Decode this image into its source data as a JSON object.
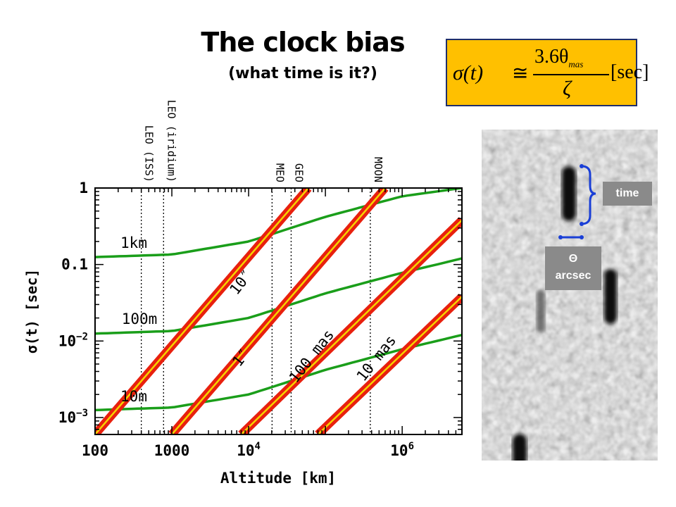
{
  "slide": {
    "title": "The clock bias",
    "subtitle": "(what time is it?)"
  },
  "formula": {
    "lhs": "σ(t)",
    "approx": "≅",
    "numerator": "3.6θ",
    "numerator_sub": "mas",
    "denominator": "ζ",
    "unit": "[sec]",
    "box_color": "#ffc000",
    "border_color": "#1f2f6b"
  },
  "image_panel": {
    "time_label": "time",
    "theta_label": "Θ",
    "arcsec_label": "arcsec",
    "bracket_color": "#1a3fd6"
  },
  "chart_data": {
    "type": "line",
    "xlabel": "Altitude [km]",
    "ylabel": "σ(t) [sec]",
    "xscale": "log",
    "yscale": "log",
    "xlim": [
      100,
      6000000
    ],
    "ylim": [
      0.0006,
      1
    ],
    "x_ticks": [
      {
        "value": 100,
        "label": "100",
        "sup": ""
      },
      {
        "value": 1000,
        "label": "1000",
        "sup": ""
      },
      {
        "value": 10000,
        "label": "10",
        "sup": "4"
      },
      {
        "value": 1000000,
        "label": "10",
        "sup": "6"
      }
    ],
    "y_ticks": [
      {
        "value": 1,
        "label": "1",
        "sup": ""
      },
      {
        "value": 0.1,
        "label": "0.1",
        "sup": ""
      },
      {
        "value": 0.01,
        "label": "10",
        "sup": "−2"
      },
      {
        "value": 0.001,
        "label": "10",
        "sup": "−3"
      }
    ],
    "orbits": [
      {
        "name": "LEO (ISS)",
        "altitude": 400
      },
      {
        "name": "LEO (iridium)",
        "altitude": 780
      },
      {
        "name": "MEO",
        "altitude": 20200
      },
      {
        "name": "GEO",
        "altitude": 35786
      },
      {
        "name": "MOON",
        "altitude": 384400
      }
    ],
    "series": [
      {
        "name": "1km",
        "kind": "accuracy",
        "color": "#1a9e1a",
        "x": [
          100,
          1000,
          10000,
          20200,
          100000,
          1000000,
          6000000
        ],
        "y": [
          0.125,
          0.135,
          0.2,
          0.25,
          0.42,
          0.78,
          1.0
        ]
      },
      {
        "name": "100m",
        "kind": "accuracy",
        "color": "#1a9e1a",
        "x": [
          100,
          1000,
          10000,
          20200,
          100000,
          1000000,
          6000000
        ],
        "y": [
          0.0125,
          0.0135,
          0.02,
          0.025,
          0.042,
          0.078,
          0.12
        ]
      },
      {
        "name": "10m",
        "kind": "accuracy",
        "color": "#1a9e1a",
        "x": [
          100,
          1000,
          10000,
          20200,
          100000,
          1000000,
          6000000
        ],
        "y": [
          0.00125,
          0.00135,
          0.002,
          0.0025,
          0.0042,
          0.0078,
          0.012
        ]
      },
      {
        "name": "10″",
        "kind": "astrometry",
        "color": "#e8200e",
        "x": [
          100,
          60000
        ],
        "y": [
          0.0006,
          1.0
        ]
      },
      {
        "name": "1″",
        "kind": "astrometry",
        "color": "#e8200e",
        "x": [
          1000,
          600000
        ],
        "y": [
          0.0006,
          1.0
        ]
      },
      {
        "name": "100 mas",
        "kind": "astrometry",
        "color": "#e8200e",
        "x": [
          8000,
          6000000
        ],
        "y": [
          0.0006,
          0.38
        ]
      },
      {
        "name": "10 mas",
        "kind": "astrometry",
        "color": "#e8200e",
        "x": [
          80000,
          6000000
        ],
        "y": [
          0.0006,
          0.038
        ]
      }
    ]
  }
}
